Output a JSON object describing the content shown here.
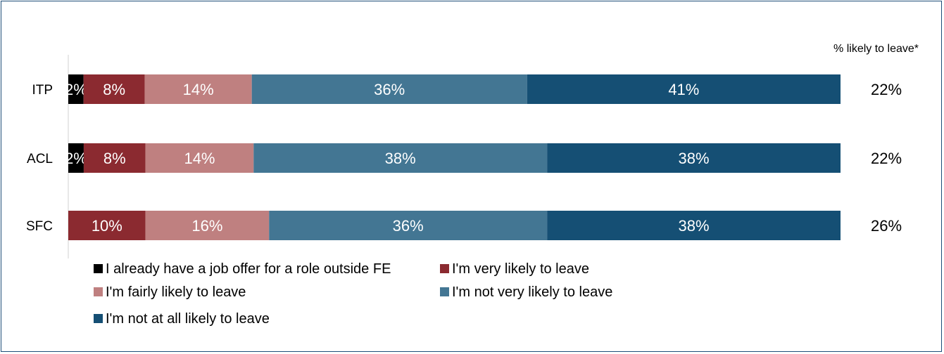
{
  "chart_data": {
    "type": "bar",
    "orientation": "horizontal",
    "stacked": true,
    "categories": [
      "ITP",
      "ACL",
      "SFC"
    ],
    "series": [
      {
        "name": "I already have a job offer for a role outside FE",
        "color": "#000000",
        "label_color": "#ffffff",
        "values": [
          2,
          2,
          0
        ],
        "labels": [
          "2%",
          "2%",
          ""
        ]
      },
      {
        "name": "I'm very likely to leave",
        "color": "#8b2a30",
        "label_color": "#ffffff",
        "values": [
          8,
          8,
          10
        ],
        "labels": [
          "8%",
          "8%",
          "10%"
        ]
      },
      {
        "name": "I'm fairly likely to leave",
        "color": "#bf8080",
        "label_color": "#ffffff",
        "values": [
          14,
          14,
          16
        ],
        "labels": [
          "14%",
          "14%",
          "16%"
        ]
      },
      {
        "name": "I'm not very likely to leave",
        "color": "#437693",
        "label_color": "#ffffff",
        "values": [
          36,
          38,
          36
        ],
        "labels": [
          "36%",
          "38%",
          "36%"
        ]
      },
      {
        "name": "I'm not at all likely to leave",
        "color": "#154f74",
        "label_color": "#ffffff",
        "values": [
          41,
          38,
          38
        ],
        "labels": [
          "41%",
          "38%",
          "38%"
        ]
      }
    ],
    "right_column": {
      "header": "% likely to leave*",
      "values": [
        "22%",
        "22%",
        "26%"
      ]
    },
    "legend_position": "bottom",
    "grid": false
  }
}
